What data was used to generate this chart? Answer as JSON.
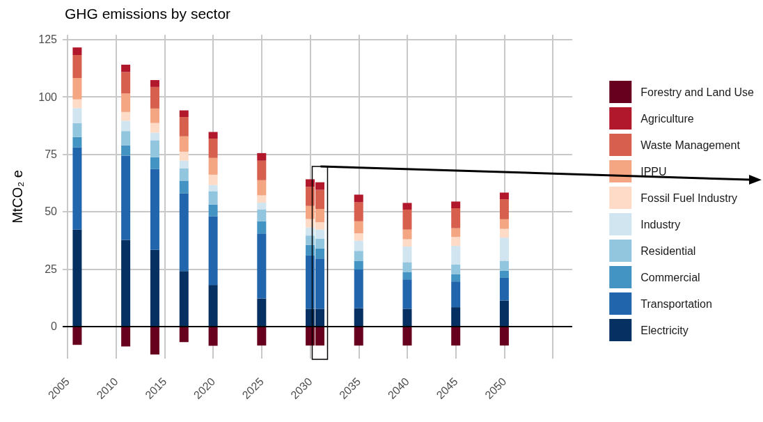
{
  "chart_data": {
    "type": "bar",
    "title": "GHG emissions by sector",
    "ylabel": "MtCO₂ e",
    "stacked": true,
    "x": [
      2006,
      2011,
      2014,
      2017,
      2020,
      2025,
      2030,
      2031,
      2035,
      2040,
      2045,
      2050
    ],
    "series": [
      {
        "name": "Electricity",
        "color": "#053061",
        "values": [
          42.2,
          37.7,
          33.4,
          24.1,
          18.1,
          12.2,
          7.7,
          7.7,
          8.0,
          7.7,
          8.4,
          11.3
        ]
      },
      {
        "name": "Transportation",
        "color": "#2166ac",
        "values": [
          35.8,
          36.7,
          35.2,
          33.9,
          29.9,
          28.3,
          23.2,
          21.9,
          16.8,
          12.8,
          11.2,
          9.9
        ]
      },
      {
        "name": "Commercial",
        "color": "#4393c3",
        "values": [
          4.5,
          4.5,
          5.1,
          5.5,
          5.1,
          5.3,
          4.6,
          4.4,
          3.8,
          3.2,
          3.2,
          3.1
        ]
      },
      {
        "name": "Residential",
        "color": "#92c5de",
        "values": [
          6.1,
          6.2,
          7.4,
          5.4,
          5.8,
          5.1,
          4.1,
          4.3,
          4.3,
          4.3,
          4.2,
          4.3
        ]
      },
      {
        "name": "Industry",
        "color": "#d1e5f0",
        "values": [
          6.5,
          4.5,
          3.3,
          3.3,
          2.7,
          3.0,
          3.5,
          3.9,
          4.5,
          6.8,
          8.1,
          10.1
        ]
      },
      {
        "name": "Fossil Fuel Industry",
        "color": "#fddbc7",
        "values": [
          3.8,
          3.8,
          4.2,
          3.9,
          4.5,
          3.2,
          3.7,
          3.2,
          3.2,
          3.2,
          3.9,
          3.8
        ]
      },
      {
        "name": "IPPU",
        "color": "#f4a582",
        "values": [
          9.3,
          8.1,
          6.3,
          6.7,
          7.3,
          6.6,
          5.7,
          5.8,
          5.2,
          4.2,
          3.8,
          4.2
        ]
      },
      {
        "name": "Waste Management",
        "color": "#d6604d",
        "values": [
          10.0,
          9.3,
          9.4,
          8.4,
          8.4,
          8.5,
          8.3,
          8.3,
          8.3,
          8.7,
          8.7,
          8.7
        ]
      },
      {
        "name": "Agriculture",
        "color": "#b2182b",
        "values": [
          3.3,
          3.2,
          3.0,
          2.9,
          2.9,
          3.3,
          3.3,
          3.3,
          3.3,
          2.9,
          2.9,
          2.9
        ]
      },
      {
        "name": "Forestry and Land Use",
        "color": "#67001f",
        "values": [
          -8.0,
          -8.7,
          -12.2,
          -6.8,
          -8.4,
          -8.3,
          -8.3,
          -8.3,
          -8.3,
          -8.3,
          -8.3,
          -8.3
        ]
      }
    ],
    "xlim": [
      2004.5,
      2057
    ],
    "xticks": [
      2005,
      2010,
      2015,
      2020,
      2025,
      2030,
      2035,
      2040,
      2045,
      2050,
      {
        "value": 2055,
        "label": null
      }
    ],
    "ylim": [
      -14,
      127
    ],
    "yticks": [
      0,
      25,
      50,
      75,
      100,
      125
    ],
    "ref_lines": [
      {
        "axis": "y",
        "value": 0,
        "color": "#000000"
      }
    ],
    "grid": true,
    "legend": "right"
  }
}
